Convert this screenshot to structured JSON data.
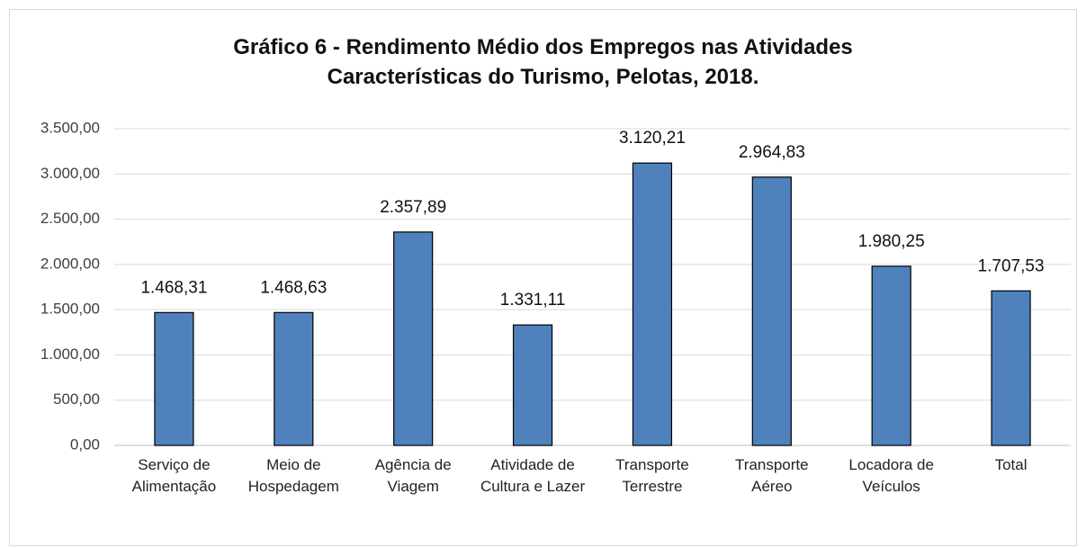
{
  "chart_data": {
    "type": "bar",
    "title": "Gráfico 6 - Rendimento Médio dos Empregos nas Atividades Características do Turismo, Pelotas, 2018.",
    "categories": [
      "Serviço de Alimentação",
      "Meio de Hospedagem",
      "Agência de Viagem",
      "Atividade de Cultura e Lazer",
      "Transporte Terrestre",
      "Transporte Aéreo",
      "Locadora de Veículos",
      "Total"
    ],
    "values": [
      1468.31,
      1468.63,
      2357.89,
      1331.11,
      3120.21,
      2964.83,
      1980.25,
      1707.53
    ],
    "value_labels": [
      "1.468,31",
      "1.468,63",
      "2.357,89",
      "1.331,11",
      "3.120,21",
      "2.964,83",
      "1.980,25",
      "1.707,53"
    ],
    "color": "#4f81bd",
    "ylim": [
      0,
      3500
    ],
    "yticks": [
      {
        "value": 0,
        "label": "0,00"
      },
      {
        "value": 500,
        "label": "500,00"
      },
      {
        "value": 1000,
        "label": "1.000,00"
      },
      {
        "value": 1500,
        "label": "1.500,00"
      },
      {
        "value": 2000,
        "label": "2.000,00"
      },
      {
        "value": 2500,
        "label": "2.500,00"
      },
      {
        "value": 3000,
        "label": "3.000,00"
      },
      {
        "value": 3500,
        "label": "3.500,00"
      }
    ],
    "grid": true
  }
}
